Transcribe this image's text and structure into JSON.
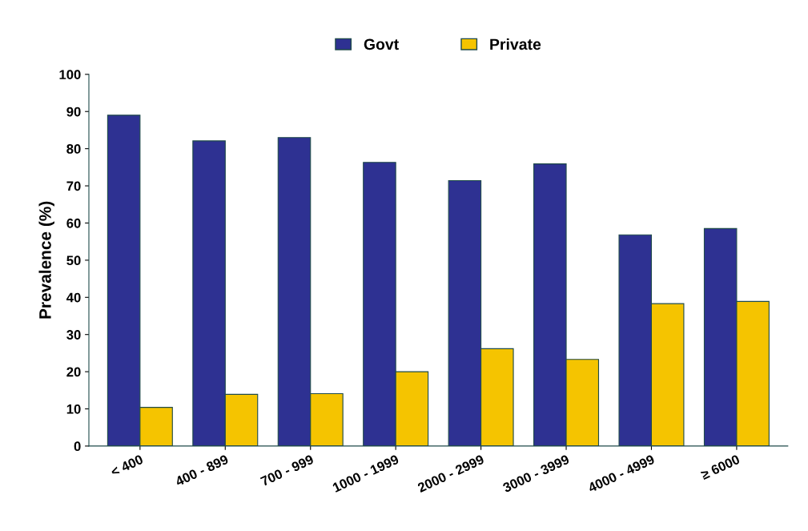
{
  "chart_data": {
    "type": "bar",
    "ylabel": "Prevalence (%)",
    "categories": [
      "< 400",
      "400 - 899",
      "700 - 999",
      "1000 - 1999",
      "2000 - 2999",
      "3000 - 3999",
      "4000 - 4999",
      "≥ 6000"
    ],
    "series": [
      {
        "name": "Govt",
        "color": "#2e3192",
        "values": [
          89.0,
          82.1,
          83.0,
          76.3,
          71.4,
          75.9,
          56.8,
          58.5
        ]
      },
      {
        "name": "Private",
        "color": "#f5c400",
        "values": [
          10.4,
          13.9,
          14.1,
          20.0,
          26.2,
          23.3,
          38.3,
          38.9
        ]
      }
    ],
    "ylim": [
      0,
      100
    ],
    "yticks": [
      0,
      10,
      20,
      30,
      40,
      50,
      60,
      70,
      80,
      90,
      100
    ],
    "grid": false,
    "legend": "top"
  }
}
